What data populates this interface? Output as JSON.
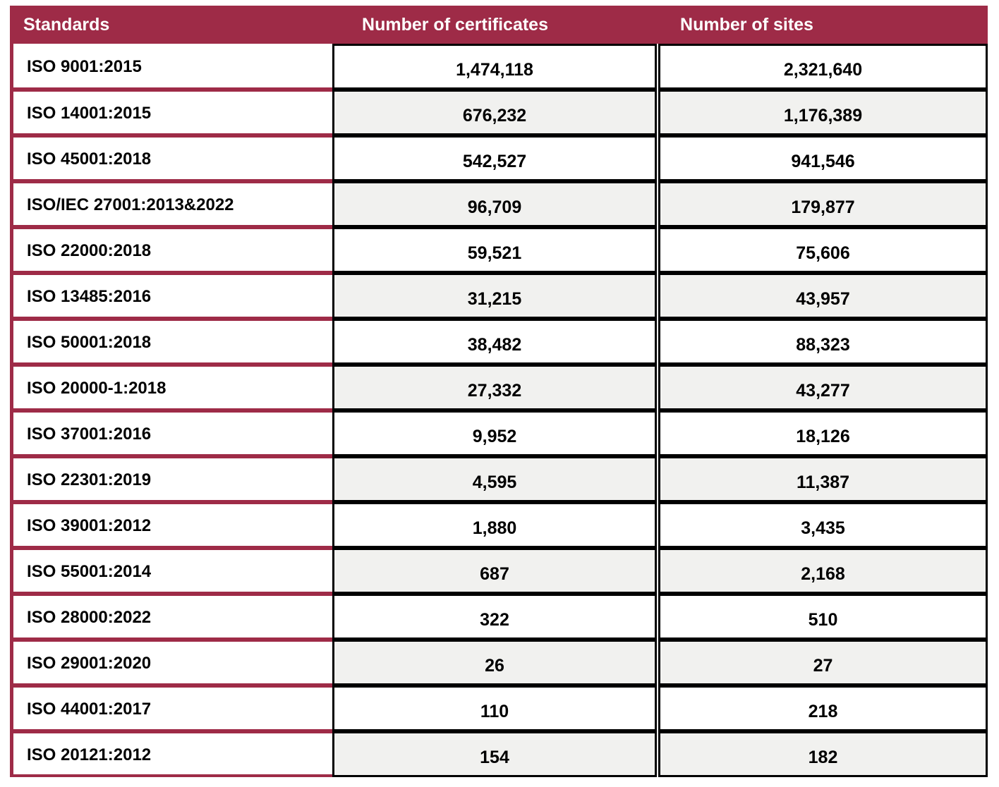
{
  "table": {
    "columns": [
      "Standards",
      "Number of certificates",
      "Number of sites"
    ],
    "rows": [
      {
        "standard": "ISO 9001:2015",
        "certificates": "1,474,118",
        "sites": "2,321,640"
      },
      {
        "standard": "ISO 14001:2015",
        "certificates": "676,232",
        "sites": "1,176,389"
      },
      {
        "standard": "ISO 45001:2018",
        "certificates": "542,527",
        "sites": "941,546"
      },
      {
        "standard": "ISO/IEC 27001:2013&2022",
        "certificates": "96,709",
        "sites": "179,877"
      },
      {
        "standard": "ISO 22000:2018",
        "certificates": "59,521",
        "sites": "75,606"
      },
      {
        "standard": "ISO 13485:2016",
        "certificates": "31,215",
        "sites": "43,957"
      },
      {
        "standard": "ISO 50001:2018",
        "certificates": "38,482",
        "sites": "88,323"
      },
      {
        "standard": "ISO 20000-1:2018",
        "certificates": "27,332",
        "sites": "43,277"
      },
      {
        "standard": "ISO 37001:2016",
        "certificates": "9,952",
        "sites": "18,126"
      },
      {
        "standard": "ISO 22301:2019",
        "certificates": "4,595",
        "sites": "11,387"
      },
      {
        "standard": "ISO 39001:2012",
        "certificates": "1,880",
        "sites": "3,435"
      },
      {
        "standard": "ISO 55001:2014",
        "certificates": "687",
        "sites": "2,168"
      },
      {
        "standard": "ISO 28000:2022",
        "certificates": "322",
        "sites": "510"
      },
      {
        "standard": "ISO 29001:2020",
        "certificates": "26",
        "sites": "27"
      },
      {
        "standard": "ISO 44001:2017",
        "certificates": "110",
        "sites": "218"
      },
      {
        "standard": "ISO 20121:2012",
        "certificates": "154",
        "sites": "182"
      }
    ]
  },
  "colors": {
    "header_bg": "#9E2B47",
    "maroon_border": "#9E2B47",
    "grid_black": "#000000",
    "alt_row_bg": "#F1F1EF",
    "header_text": "#FFFFFF",
    "body_text": "#000000"
  }
}
